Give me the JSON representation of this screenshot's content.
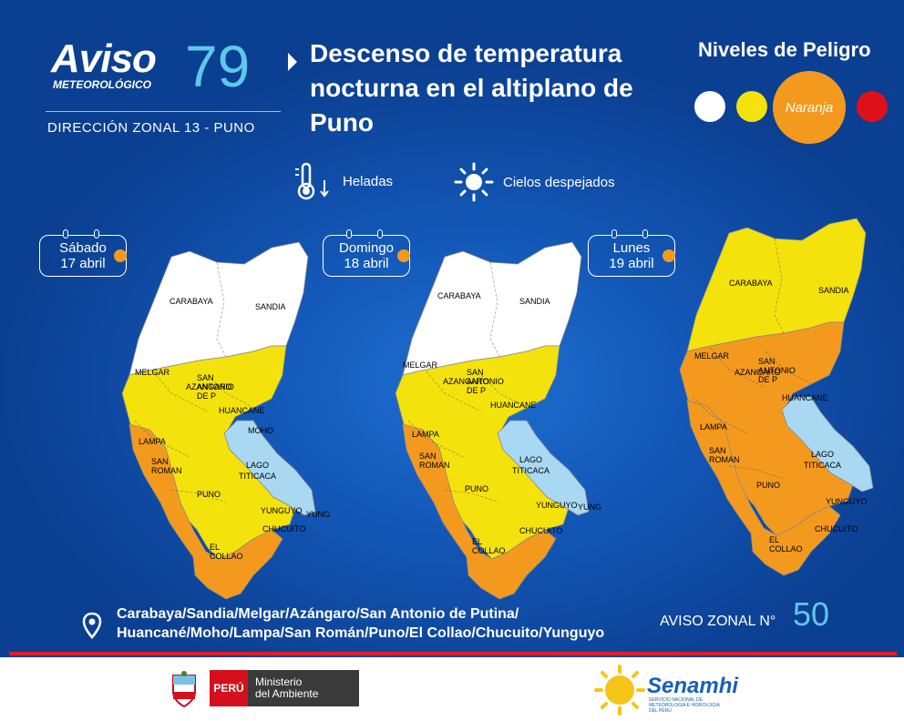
{
  "header": {
    "aviso_word": "Aviso",
    "aviso_sub": "METEOROLÓGICO",
    "aviso_number": "79",
    "zonal": "DIRECCIÓN ZONAL 13 - PUNO",
    "title": "Descenso de temperatura nocturna  en el altiplano de Puno"
  },
  "niveles": {
    "title": "Niveles de Peligro",
    "active_label": "Naranja",
    "colors": {
      "white": "#ffffff",
      "yellow": "#f4e20c",
      "orange": "#f39a1e",
      "red": "#e0101a"
    }
  },
  "legend": {
    "heladas": {
      "icon": "thermometer-frost-icon",
      "label": "Heladas"
    },
    "cielos": {
      "icon": "sun-icon",
      "label": "Cielos despejados"
    }
  },
  "days": [
    {
      "day": "Sábado",
      "date": "17 abril"
    },
    {
      "day": "Domingo",
      "date": "18 abril"
    },
    {
      "day": "Lunes",
      "date": "19 abril"
    }
  ],
  "map_labels": {
    "carabaya": "CARABAYA",
    "sandia": "SANDIA",
    "melgar": "MELGAR",
    "san_antonio": "SAN ANTONIO DE P",
    "azangaro": "AZANGARO",
    "huancane": "HUANCANE",
    "moho": "MOHO",
    "lampa": "LAMPA",
    "san_roman": "SAN ROMAN",
    "lago": "LAGO",
    "titicaca": "TITICACA",
    "puno": "PUNO",
    "yunguyo": "YUNGUYO",
    "yung": "YUNG",
    "chucuito": "CHUCUITO",
    "el_collao": "EL COLLAO"
  },
  "map_levels": [
    {
      "north": "white",
      "middle": "yellow",
      "south": "orange"
    },
    {
      "north": "white",
      "middle": "yellow",
      "south": "orange"
    },
    {
      "north": "yellow",
      "middle": "orange",
      "south": "orange"
    }
  ],
  "footer": {
    "places_line1": "Carabaya/Sandia/Melgar/Azángaro/San Antonio de Putina/",
    "places_line2": "Huancané/Moho/Lampa/San Román/Puno/El Collao/Chucuito/Yunguyo",
    "aviso_zonal_label": "AVISO ZONAL N°",
    "aviso_zonal_number": "50",
    "peru": "PERÚ",
    "ministerio": "Ministerio",
    "ambiente": "del Ambiente",
    "senamhi": "Senamhi",
    "senamhi_sub": "SERVICIO NACIONAL DE METEOROLOGÍA E HIDROLOGÍA DEL PERÚ"
  }
}
